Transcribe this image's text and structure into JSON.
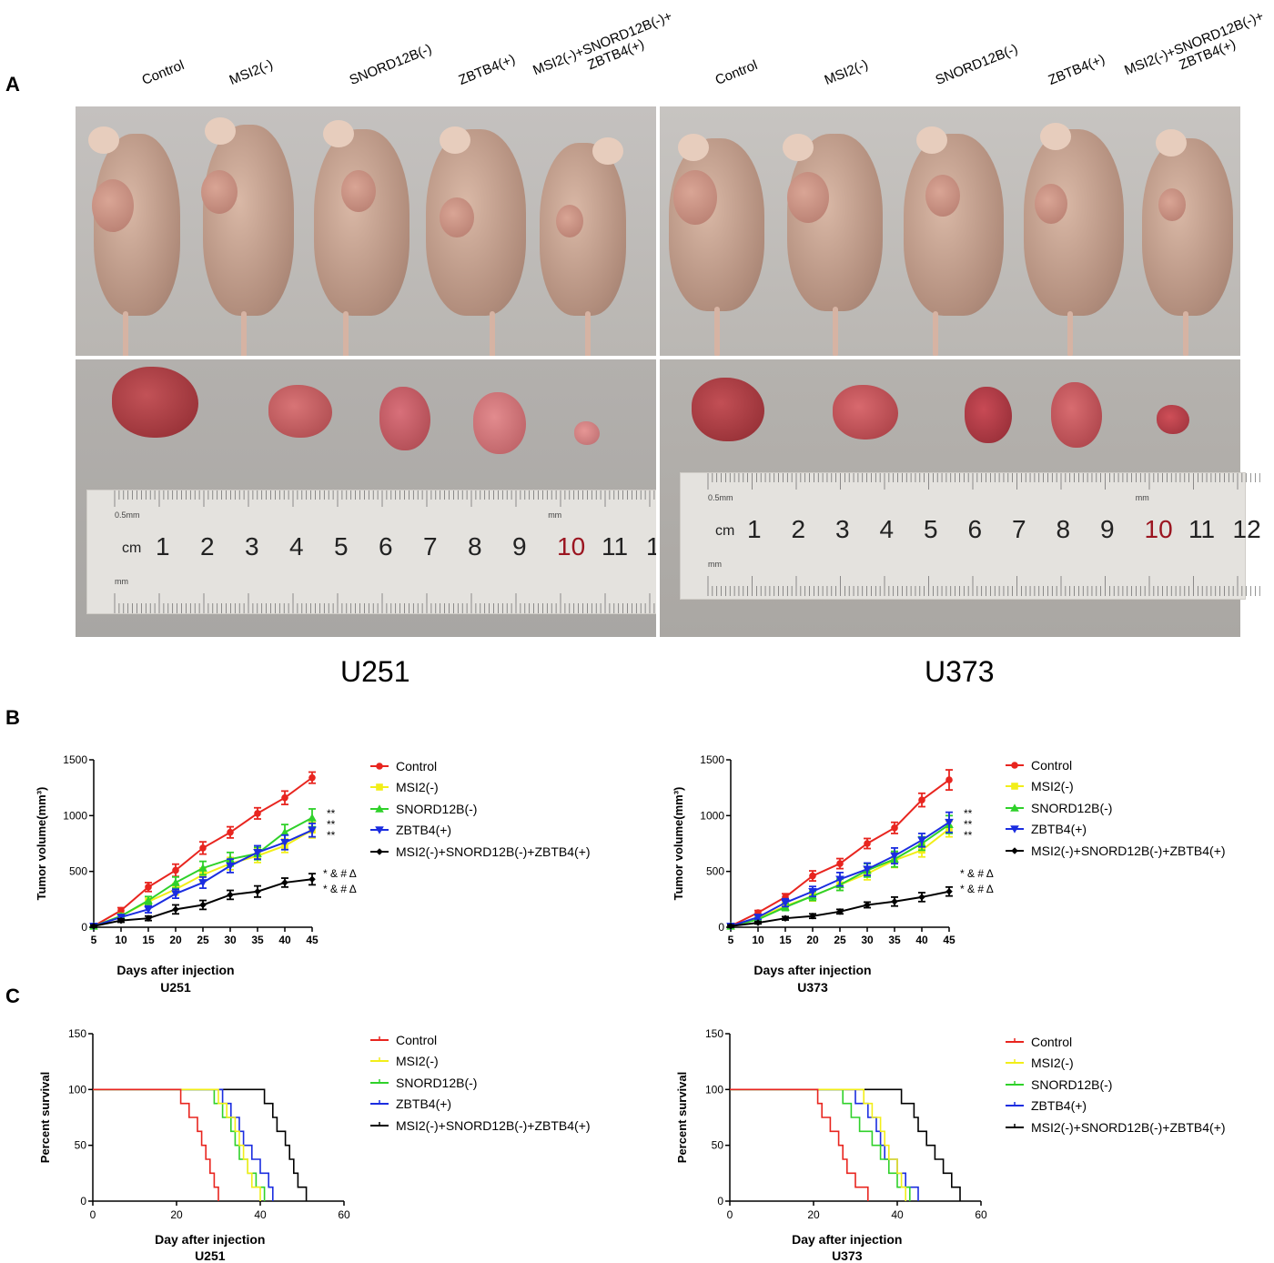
{
  "panels": {
    "A": "A",
    "B": "B",
    "C": "C"
  },
  "group_labels": [
    {
      "line1": "Control",
      "line2": ""
    },
    {
      "line1": "MSI2(-)",
      "line2": ""
    },
    {
      "line1": "SNORD12B(-)",
      "line2": ""
    },
    {
      "line1": "ZBTB4(+)",
      "line2": ""
    },
    {
      "line1": "MSI2(-)+SNORD12B(-)+",
      "line2": "ZBTB4(+)"
    }
  ],
  "ruler": {
    "unit": "cm",
    "small_label": "0.5mm",
    "mm_label": "mm",
    "numbers": [
      "1",
      "2",
      "3",
      "4",
      "5",
      "6",
      "7",
      "8",
      "9",
      "10",
      "11",
      "12"
    ]
  },
  "cell_lines": [
    "U251",
    "U373"
  ],
  "colors": {
    "control": "#e8251f",
    "msi2": "#f2ee19",
    "snord12b": "#2fd12a",
    "zbtb4": "#1b2de0",
    "combo": "#000000"
  },
  "legend": [
    "Control",
    "MSI2(-)",
    "SNORD12B(-)",
    "ZBTB4(+)",
    "MSI2(-)+SNORD12B(-)+ZBTB4(+)"
  ],
  "chart_data": [
    {
      "type": "line",
      "cell_line": "U251",
      "xlabel": "Days after injection",
      "subtitle": "U251",
      "ylabel": "Tumor volume(mm³)",
      "x": [
        5,
        10,
        15,
        20,
        25,
        30,
        35,
        40,
        45
      ],
      "ylim": [
        0,
        1500
      ],
      "yticks": [
        0,
        500,
        1000,
        1500
      ],
      "series": [
        {
          "name": "Control",
          "values": [
            10,
            150,
            360,
            510,
            710,
            850,
            1020,
            1160,
            1340
          ],
          "err": [
            10,
            25,
            40,
            55,
            55,
            50,
            50,
            60,
            50
          ]
        },
        {
          "name": "MSI2(-)",
          "values": [
            10,
            100,
            230,
            340,
            470,
            570,
            640,
            730,
            870
          ],
          "err": [
            10,
            20,
            40,
            50,
            60,
            55,
            60,
            60,
            70
          ]
        },
        {
          "name": "SNORD12B(-)",
          "values": [
            10,
            100,
            240,
            400,
            530,
            610,
            660,
            850,
            980
          ],
          "err": [
            10,
            20,
            35,
            50,
            60,
            60,
            55,
            70,
            80
          ]
        },
        {
          "name": "ZBTB4(+)",
          "values": [
            10,
            90,
            160,
            300,
            400,
            550,
            670,
            760,
            870
          ],
          "err": [
            10,
            20,
            30,
            40,
            50,
            60,
            60,
            65,
            60
          ]
        },
        {
          "name": "MSI2(-)+SNORD12B(-)+ZBTB4(+)",
          "values": [
            10,
            60,
            80,
            160,
            200,
            290,
            320,
            400,
            430
          ],
          "err": [
            10,
            15,
            20,
            40,
            40,
            40,
            50,
            40,
            50
          ]
        }
      ],
      "annotations": [
        "**",
        "**",
        "**",
        "* & # Δ",
        "* & # Δ"
      ]
    },
    {
      "type": "line",
      "cell_line": "U373",
      "xlabel": "Days after injection",
      "subtitle": "U373",
      "ylabel": "Tumor volume(mm³)",
      "x": [
        5,
        10,
        15,
        20,
        25,
        30,
        35,
        40,
        45
      ],
      "ylim": [
        0,
        1500
      ],
      "yticks": [
        0,
        500,
        1000,
        1500
      ],
      "series": [
        {
          "name": "Control",
          "values": [
            10,
            130,
            270,
            460,
            570,
            750,
            890,
            1140,
            1320
          ],
          "err": [
            10,
            20,
            30,
            45,
            45,
            45,
            50,
            60,
            90
          ]
        },
        {
          "name": "MSI2(-)",
          "values": [
            10,
            80,
            190,
            280,
            380,
            480,
            600,
            690,
            880
          ],
          "err": [
            10,
            15,
            30,
            45,
            50,
            55,
            65,
            60,
            70
          ]
        },
        {
          "name": "SNORD12B(-)",
          "values": [
            10,
            70,
            180,
            280,
            380,
            510,
            610,
            750,
            920
          ],
          "err": [
            10,
            15,
            30,
            40,
            50,
            60,
            70,
            60,
            80
          ]
        },
        {
          "name": "ZBTB4(+)",
          "values": [
            10,
            90,
            220,
            320,
            430,
            520,
            640,
            780,
            940
          ],
          "err": [
            10,
            20,
            35,
            45,
            60,
            55,
            70,
            60,
            90
          ]
        },
        {
          "name": "MSI2(-)+SNORD12B(-)+ZBTB4(+)",
          "values": [
            10,
            40,
            80,
            100,
            140,
            200,
            230,
            270,
            320
          ],
          "err": [
            10,
            10,
            15,
            20,
            20,
            25,
            40,
            40,
            40
          ]
        }
      ],
      "annotations": [
        "**",
        "**",
        "**",
        "* & # Δ",
        "* & # Δ"
      ]
    },
    {
      "type": "line",
      "cell_line": "U251",
      "xlabel": "Day after injection",
      "subtitle": "U251",
      "ylabel": "Percent survival",
      "xlim": [
        0,
        60
      ],
      "xticks": [
        0,
        20,
        40,
        60
      ],
      "ylim": [
        0,
        150
      ],
      "yticks": [
        0,
        50,
        100,
        150
      ],
      "series": [
        {
          "name": "Control",
          "steps": [
            [
              0,
              100
            ],
            [
              21,
              100
            ],
            [
              21,
              87.5
            ],
            [
              23,
              87.5
            ],
            [
              23,
              75
            ],
            [
              25,
              75
            ],
            [
              25,
              62.5
            ],
            [
              26,
              62.5
            ],
            [
              26,
              50
            ],
            [
              27,
              50
            ],
            [
              27,
              37.5
            ],
            [
              28,
              37.5
            ],
            [
              28,
              25
            ],
            [
              29,
              25
            ],
            [
              29,
              12.5
            ],
            [
              30,
              12.5
            ],
            [
              30,
              0
            ]
          ]
        },
        {
          "name": "MSI2(-)",
          "steps": [
            [
              0,
              100
            ],
            [
              30,
              100
            ],
            [
              30,
              87.5
            ],
            [
              32,
              87.5
            ],
            [
              32,
              75
            ],
            [
              34,
              75
            ],
            [
              34,
              62.5
            ],
            [
              35,
              62.5
            ],
            [
              35,
              50
            ],
            [
              36,
              50
            ],
            [
              36,
              37.5
            ],
            [
              37,
              37.5
            ],
            [
              37,
              25
            ],
            [
              38,
              25
            ],
            [
              38,
              12.5
            ],
            [
              40,
              12.5
            ],
            [
              40,
              0
            ]
          ]
        },
        {
          "name": "SNORD12B(-)",
          "steps": [
            [
              0,
              100
            ],
            [
              29,
              100
            ],
            [
              29,
              87.5
            ],
            [
              31,
              87.5
            ],
            [
              31,
              75
            ],
            [
              33,
              75
            ],
            [
              33,
              62.5
            ],
            [
              34,
              62.5
            ],
            [
              34,
              50
            ],
            [
              35,
              50
            ],
            [
              35,
              37.5
            ],
            [
              37,
              37.5
            ],
            [
              37,
              25
            ],
            [
              39,
              25
            ],
            [
              39,
              12.5
            ],
            [
              41,
              12.5
            ],
            [
              41,
              0
            ]
          ]
        },
        {
          "name": "ZBTB4(+)",
          "steps": [
            [
              0,
              100
            ],
            [
              31,
              100
            ],
            [
              31,
              87.5
            ],
            [
              33,
              87.5
            ],
            [
              33,
              75
            ],
            [
              35,
              75
            ],
            [
              35,
              62.5
            ],
            [
              36,
              62.5
            ],
            [
              36,
              50
            ],
            [
              38,
              50
            ],
            [
              38,
              37.5
            ],
            [
              40,
              37.5
            ],
            [
              40,
              25
            ],
            [
              42,
              25
            ],
            [
              42,
              12.5
            ],
            [
              43,
              12.5
            ],
            [
              43,
              0
            ]
          ]
        },
        {
          "name": "MSI2(-)+SNORD12B(-)+ZBTB4(+)",
          "steps": [
            [
              0,
              100
            ],
            [
              41,
              100
            ],
            [
              41,
              87.5
            ],
            [
              43,
              87.5
            ],
            [
              43,
              75
            ],
            [
              44,
              75
            ],
            [
              44,
              62.5
            ],
            [
              46,
              62.5
            ],
            [
              46,
              50
            ],
            [
              47,
              50
            ],
            [
              47,
              37.5
            ],
            [
              48,
              37.5
            ],
            [
              48,
              25
            ],
            [
              49,
              25
            ],
            [
              49,
              12.5
            ],
            [
              51,
              12.5
            ],
            [
              51,
              0
            ]
          ]
        }
      ]
    },
    {
      "type": "line",
      "cell_line": "U373",
      "xlabel": "Day after injection",
      "subtitle": "U373",
      "ylabel": "Percent survival",
      "xlim": [
        0,
        60
      ],
      "xticks": [
        0,
        20,
        40,
        60
      ],
      "ylim": [
        0,
        150
      ],
      "yticks": [
        0,
        50,
        100,
        150
      ],
      "series": [
        {
          "name": "Control",
          "steps": [
            [
              0,
              100
            ],
            [
              21,
              100
            ],
            [
              21,
              87.5
            ],
            [
              22,
              87.5
            ],
            [
              22,
              75
            ],
            [
              24,
              75
            ],
            [
              24,
              62.5
            ],
            [
              26,
              62.5
            ],
            [
              26,
              50
            ],
            [
              27,
              50
            ],
            [
              27,
              37.5
            ],
            [
              28,
              37.5
            ],
            [
              28,
              25
            ],
            [
              30,
              25
            ],
            [
              30,
              12.5
            ],
            [
              33,
              12.5
            ],
            [
              33,
              0
            ]
          ]
        },
        {
          "name": "MSI2(-)",
          "steps": [
            [
              0,
              100
            ],
            [
              32,
              100
            ],
            [
              32,
              87.5
            ],
            [
              34,
              87.5
            ],
            [
              34,
              75
            ],
            [
              36,
              75
            ],
            [
              36,
              62.5
            ],
            [
              37,
              62.5
            ],
            [
              37,
              50
            ],
            [
              38,
              50
            ],
            [
              38,
              37.5
            ],
            [
              40,
              37.5
            ],
            [
              40,
              25
            ],
            [
              41,
              25
            ],
            [
              41,
              12.5
            ],
            [
              42,
              12.5
            ],
            [
              42,
              0
            ]
          ]
        },
        {
          "name": "SNORD12B(-)",
          "steps": [
            [
              0,
              100
            ],
            [
              27,
              100
            ],
            [
              27,
              87.5
            ],
            [
              29,
              87.5
            ],
            [
              29,
              75
            ],
            [
              31,
              75
            ],
            [
              31,
              62.5
            ],
            [
              34,
              62.5
            ],
            [
              34,
              50
            ],
            [
              36,
              50
            ],
            [
              36,
              37.5
            ],
            [
              38,
              37.5
            ],
            [
              38,
              25
            ],
            [
              40,
              25
            ],
            [
              40,
              12.5
            ],
            [
              43,
              12.5
            ],
            [
              43,
              0
            ]
          ]
        },
        {
          "name": "ZBTB4(+)",
          "steps": [
            [
              0,
              100
            ],
            [
              30,
              100
            ],
            [
              30,
              87.5
            ],
            [
              33,
              87.5
            ],
            [
              33,
              75
            ],
            [
              35,
              75
            ],
            [
              35,
              62.5
            ],
            [
              36,
              62.5
            ],
            [
              36,
              50
            ],
            [
              37,
              50
            ],
            [
              37,
              37.5
            ],
            [
              40,
              37.5
            ],
            [
              40,
              25
            ],
            [
              42,
              25
            ],
            [
              42,
              12.5
            ],
            [
              45,
              12.5
            ],
            [
              45,
              0
            ]
          ]
        },
        {
          "name": "MSI2(-)+SNORD12B(-)+ZBTB4(+)",
          "steps": [
            [
              0,
              100
            ],
            [
              41,
              100
            ],
            [
              41,
              87.5
            ],
            [
              44,
              87.5
            ],
            [
              44,
              75
            ],
            [
              45,
              75
            ],
            [
              45,
              62.5
            ],
            [
              47,
              62.5
            ],
            [
              47,
              50
            ],
            [
              49,
              50
            ],
            [
              49,
              37.5
            ],
            [
              51,
              37.5
            ],
            [
              51,
              25
            ],
            [
              53,
              25
            ],
            [
              53,
              12.5
            ],
            [
              55,
              12.5
            ],
            [
              55,
              0
            ]
          ]
        }
      ]
    }
  ]
}
